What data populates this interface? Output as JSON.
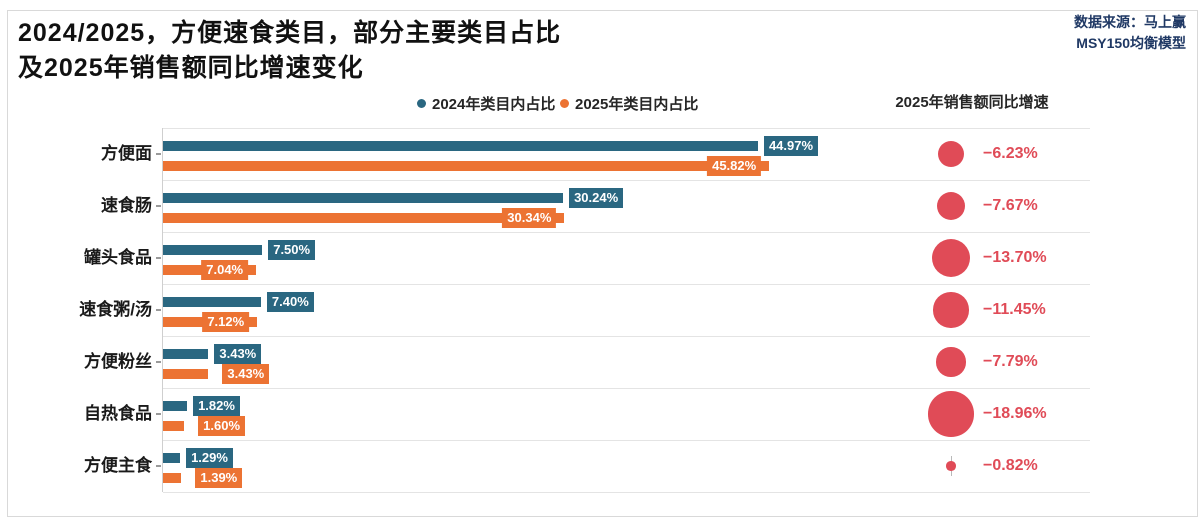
{
  "title": {
    "line1": "2024/2025，方便速食类目，部分主要类目占比",
    "line2": "及2025年销售额同比增速变化"
  },
  "source": {
    "line1": "数据来源：马上赢",
    "line2": "MSY150均衡模型"
  },
  "legend": [
    {
      "label": "2024年类目内占比",
      "color": "#2a6781"
    },
    {
      "label": "2025年类目内占比",
      "color": "#ec7333"
    }
  ],
  "growth_header": "2025年销售额同比增速",
  "colors": {
    "blue": "#2a6781",
    "orange": "#ec7333",
    "red": "#e04b57",
    "separator": "#e4e4e4",
    "axis": "#cfcfcf",
    "source_text": "#1f3864"
  },
  "chart_data": {
    "type": "bar",
    "title": "2024/2025，方便速食类目，部分主要类目占比及2025年销售额同比增速变化",
    "categories": [
      "方便面",
      "速食肠",
      "罐头食品",
      "速食粥/汤",
      "方便粉丝",
      "自热食品",
      "方便主食"
    ],
    "series": [
      {
        "name": "2024年类目内占比",
        "color": "#2a6781",
        "values": [
          44.97,
          30.24,
          7.5,
          7.4,
          3.43,
          1.82,
          1.29
        ],
        "labels": [
          "44.97%",
          "30.24%",
          "7.50%",
          "7.40%",
          "3.43%",
          "1.82%",
          "1.29%"
        ]
      },
      {
        "name": "2025年类目内占比",
        "color": "#ec7333",
        "values": [
          45.82,
          30.34,
          7.04,
          7.12,
          3.43,
          1.6,
          1.39
        ],
        "labels": [
          "45.82%",
          "30.34%",
          "7.04%",
          "7.12%",
          "3.43%",
          "1.60%",
          "1.39%"
        ]
      }
    ],
    "growth": {
      "name": "2025年销售额同比增速",
      "color": "#e04b57",
      "values": [
        -6.23,
        -7.67,
        -13.7,
        -11.45,
        -7.79,
        -18.96,
        -0.82
      ],
      "labels": [
        "−6.23%",
        "−7.67%",
        "−13.70%",
        "−11.45%",
        "−7.79%",
        "−18.96%",
        "−0.82%"
      ]
    },
    "xlim": [
      0,
      53
    ],
    "grid": "row-separators",
    "legend_position": "top",
    "orientation": "horizontal"
  }
}
